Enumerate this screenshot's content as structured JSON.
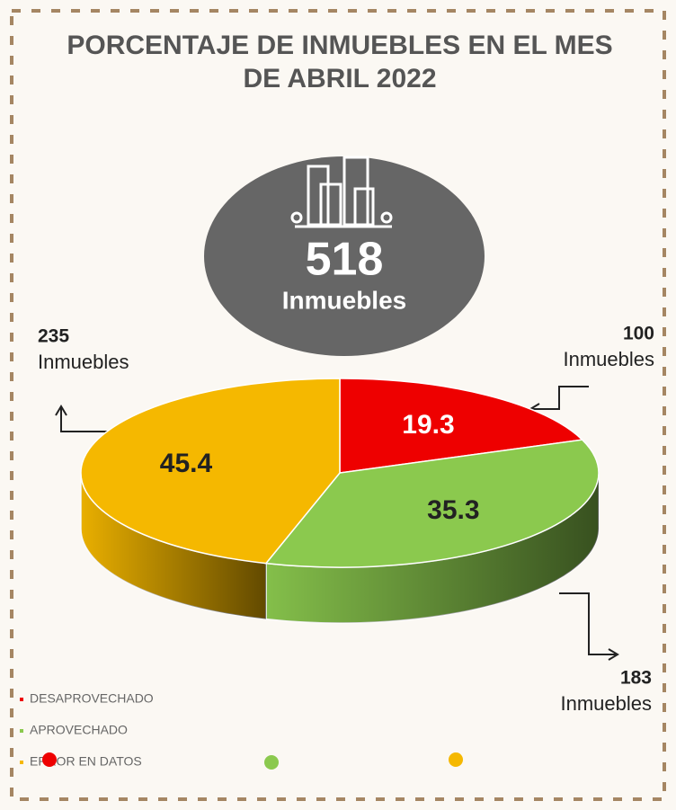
{
  "chart_data": {
    "type": "pie",
    "title": [
      "PORCENTAJE DE INMUEBLES EN EL MES",
      "DE ABRIL 2022"
    ],
    "total": 518,
    "unit": "Inmuebles",
    "categories": [
      "DESAPROVECHADO",
      "APROVECHADO",
      "ERROR EN DATOS"
    ],
    "values": [
      19.3,
      35.3,
      45.4
    ],
    "counts": [
      100,
      183,
      235
    ],
    "colors": [
      "#ee0000",
      "#8bc94e",
      "#f5b800"
    ]
  }
}
